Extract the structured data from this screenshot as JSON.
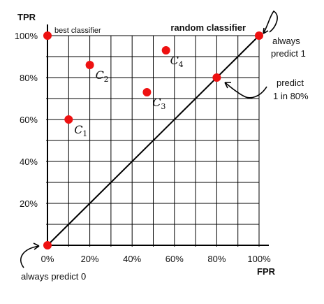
{
  "chart_data": {
    "type": "scatter",
    "xlabel": "FPR",
    "ylabel": "TPR",
    "xlim": [
      0,
      100
    ],
    "ylim": [
      0,
      100
    ],
    "grid": true,
    "x_ticks": [
      "0%",
      "20%",
      "40%",
      "60%",
      "80%",
      "100%"
    ],
    "y_ticks": [
      "20%",
      "40%",
      "60%",
      "80%",
      "100%"
    ],
    "diagonal_label": "random classifier",
    "points": [
      {
        "name": "best",
        "x": 0,
        "y": 100,
        "label": "best classifier"
      },
      {
        "name": "c1",
        "x": 10,
        "y": 60,
        "label": "C",
        "sub": "1"
      },
      {
        "name": "c2",
        "x": 20,
        "y": 86,
        "label": "C",
        "sub": "2"
      },
      {
        "name": "c3",
        "x": 47,
        "y": 73,
        "label": "C",
        "sub": "3"
      },
      {
        "name": "c4",
        "x": 56,
        "y": 93,
        "label": "C",
        "sub": "4"
      },
      {
        "name": "random80",
        "x": 80,
        "y": 80
      },
      {
        "name": "always1",
        "x": 100,
        "y": 100
      },
      {
        "name": "always0",
        "x": 0,
        "y": 0
      }
    ],
    "annotations": {
      "always1": [
        "always",
        "predict 1"
      ],
      "predict80": [
        "predict",
        "1 in 80%"
      ],
      "always0": "always predict 0"
    },
    "colors": {
      "point": "#ee1111",
      "grid": "#000000",
      "line": "#000000"
    }
  }
}
